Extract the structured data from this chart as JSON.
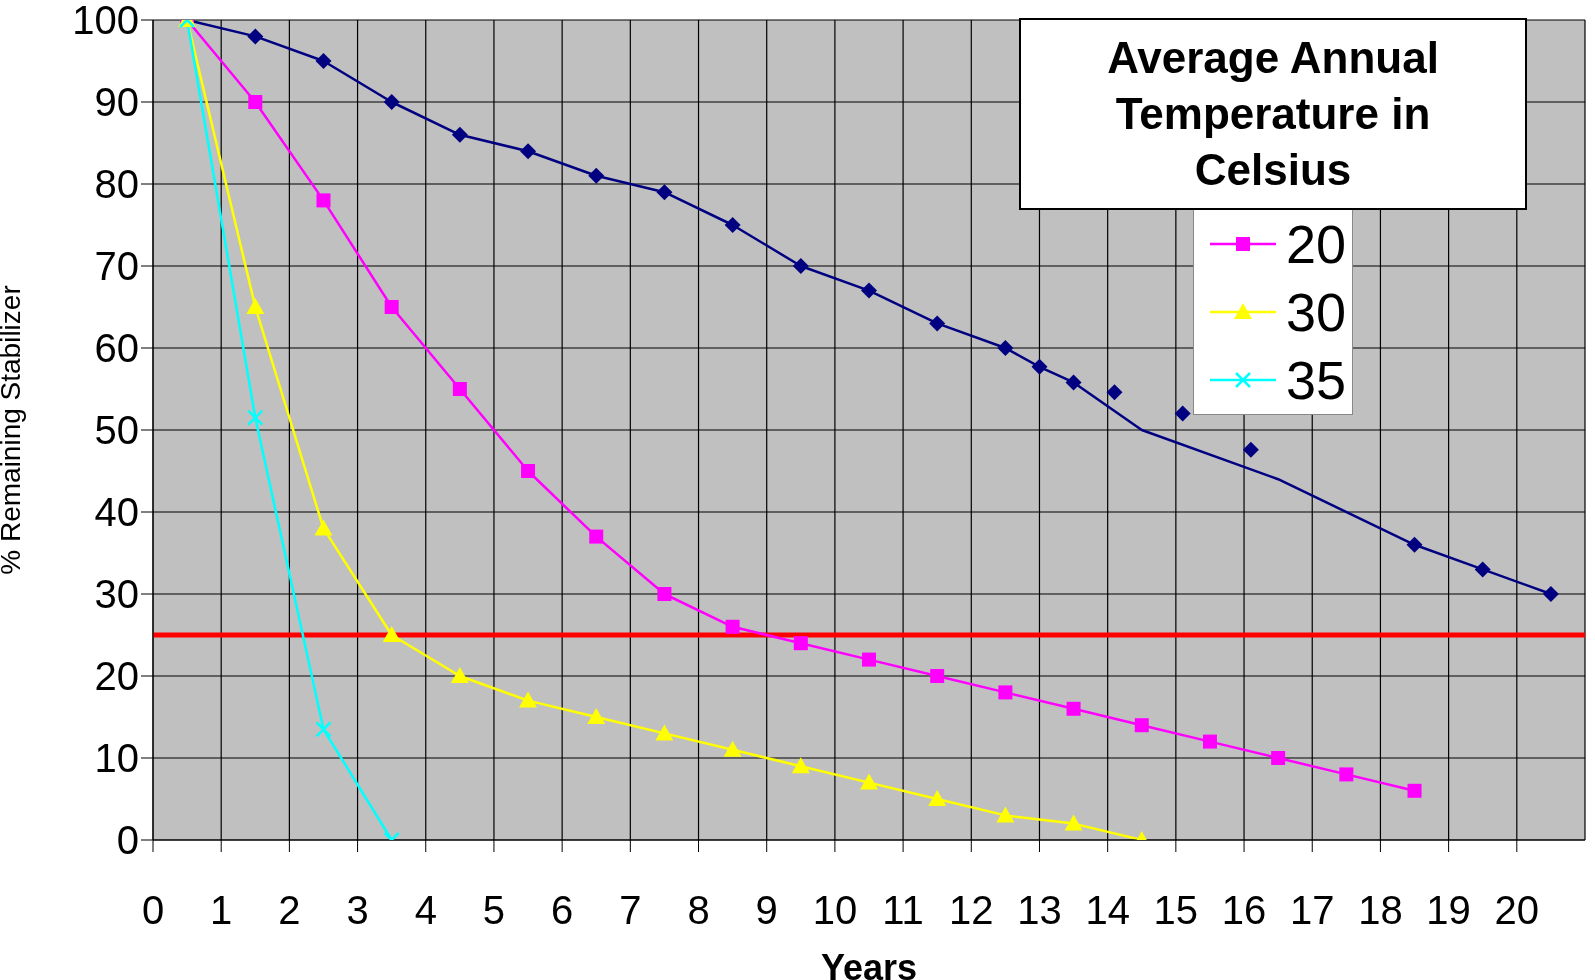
{
  "chart_data": {
    "type": "line",
    "xlabel": "Years",
    "ylabel": "% Remaining Stabilizer",
    "legend_title": "Average Annual Temperature in Celsius",
    "legend": "top right",
    "grid": true,
    "xlim": [
      0,
      21
    ],
    "xticks": [
      0,
      1,
      2,
      3,
      4,
      5,
      6,
      7,
      8,
      9,
      10,
      11,
      12,
      13,
      14,
      15,
      16,
      17,
      18,
      19,
      20
    ],
    "ylim": [
      0,
      100
    ],
    "yticks": [
      0,
      10,
      20,
      30,
      40,
      50,
      60,
      70,
      80,
      90,
      100
    ],
    "ref_lines": [
      {
        "axis": "y",
        "value": 25,
        "color": "#ff0000"
      }
    ],
    "series": [
      {
        "color": "#000080",
        "marker": "none",
        "x": [
          0.5,
          1.5,
          2.5,
          3.5,
          4.5,
          5.5,
          6.5,
          7.5,
          8.5,
          9.5,
          10.5,
          11.5,
          12.5,
          13,
          13.5,
          14.5,
          16.5,
          18.5,
          19.5,
          20.5
        ],
        "values": [
          100,
          98,
          95,
          90,
          86,
          84,
          81,
          79,
          75,
          70,
          67,
          63,
          60,
          57.7,
          55.8,
          50,
          44,
          36,
          33,
          30
        ]
      },
      {
        "type": "scatter",
        "color": "#000080",
        "marker": "diamond",
        "x": [
          1.5,
          2.5,
          3.5,
          4.5,
          5.5,
          6.5,
          7.5,
          8.5,
          9.5,
          10.5,
          11.5,
          12.5,
          13,
          13.5,
          14.1,
          15.1,
          16.1,
          18.5,
          19.5,
          20.5
        ],
        "values": [
          98,
          95,
          90,
          86,
          84,
          81,
          79,
          75,
          70,
          67,
          63,
          60,
          57.7,
          55.8,
          54.6,
          52,
          47.6,
          36,
          33,
          30
        ]
      },
      {
        "name": "20",
        "color": "#ff00ff",
        "marker": "square",
        "x": [
          0.5,
          1.5,
          2.5,
          3.5,
          4.5,
          5.5,
          6.5,
          7.5,
          8.5,
          9.5,
          10.5,
          11.5,
          12.5,
          13.5,
          14.5,
          15.5,
          16.5,
          17.5,
          18.5
        ],
        "values": [
          100,
          90,
          78,
          65,
          55,
          45,
          37,
          30,
          26,
          24,
          22,
          20,
          18,
          16,
          14,
          12,
          10,
          8,
          6
        ]
      },
      {
        "name": "30",
        "color": "#ffff00",
        "marker": "triangle",
        "x": [
          0.5,
          1.5,
          2.5,
          3.5,
          4.5,
          5.5,
          6.5,
          7.5,
          8.5,
          9.5,
          10.5,
          11.5,
          12.5,
          13.5,
          14.5
        ],
        "values": [
          100,
          65,
          38,
          25,
          20,
          17,
          15,
          13,
          11,
          9,
          7,
          5,
          3,
          2,
          0
        ]
      },
      {
        "name": "35",
        "color": "#00ffff",
        "marker": "cross",
        "x": [
          0.5,
          1.5,
          2.5,
          3.5
        ],
        "values": [
          100,
          51.5,
          13.5,
          0
        ]
      }
    ]
  }
}
